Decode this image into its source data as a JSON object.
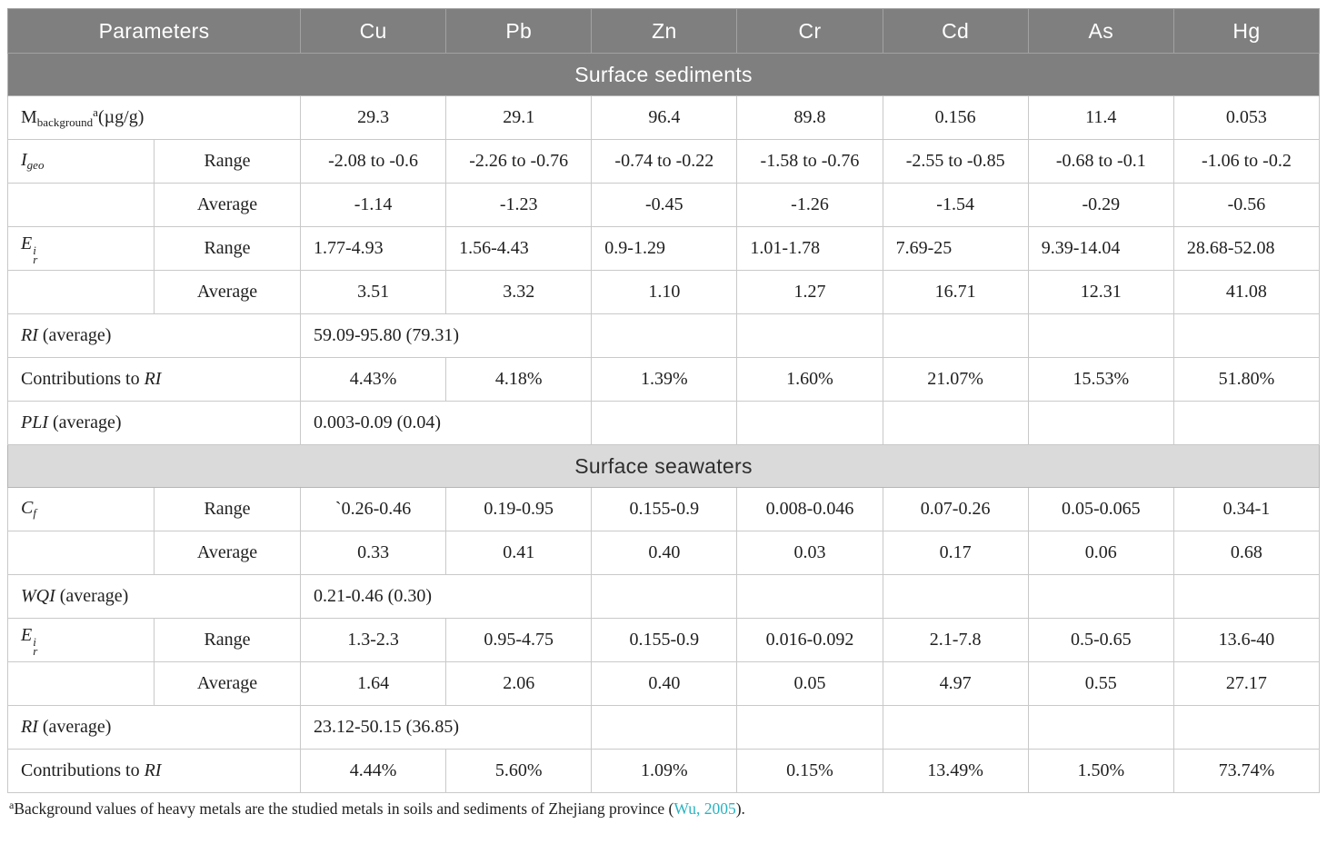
{
  "colors": {
    "header_bg": "#7f7f7f",
    "header_text": "#ffffff",
    "sediment_band_bg": "#7f7f7f",
    "sediment_band_text": "#ffffff",
    "seawater_band_bg": "#dadada",
    "seawater_band_text": "#2e2e2e",
    "border": "#c9c9c9",
    "link": "#29b3c2"
  },
  "header": {
    "parameters_label": "Parameters",
    "metals": [
      "Cu",
      "Pb",
      "Zn",
      "Cr",
      "Cd",
      "As",
      "Hg"
    ]
  },
  "sections": [
    {
      "title": "Surface sediments",
      "band_bg": "#7f7f7f",
      "band_text": "#ffffff",
      "rows": [
        {
          "label_parts": [
            {
              "t": "M"
            },
            {
              "sb": "background"
            },
            {
              "sp": "a"
            },
            {
              "t": "(µg/g)"
            }
          ],
          "label_colspan": 2,
          "values": [
            "29.3",
            "29.1",
            "96.4",
            "89.8",
            "0.156",
            "11.4",
            "0.053"
          ],
          "values_align": "center"
        },
        {
          "label_parts": [
            {
              "i": "I"
            },
            {
              "isb": "geo"
            }
          ],
          "label_colspan": 1,
          "sublabel": "Range",
          "values": [
            "-2.08 to -0.6",
            "-2.26 to -0.76",
            "-0.74 to -0.22",
            "-1.58 to -0.76",
            "-2.55 to -0.85",
            "-0.68 to -0.1",
            "-1.06 to -0.2"
          ],
          "values_align": "center"
        },
        {
          "label_parts": [],
          "label_colspan": 1,
          "sublabel": "Average",
          "values": [
            "-1.14",
            "-1.23",
            "-0.45",
            "-1.26",
            "-1.54",
            "-0.29",
            "-0.56"
          ],
          "values_align": "center"
        },
        {
          "label_parts": [
            {
              "i": "E"
            },
            {
              "ss": [
                "i",
                "r"
              ]
            }
          ],
          "label_colspan": 1,
          "sublabel": "Range",
          "values": [
            "1.77-4.93",
            "1.56-4.43",
            "0.9-1.29",
            "1.01-1.78",
            "7.69-25",
            "9.39-14.04",
            "28.68-52.08"
          ],
          "values_align": "left"
        },
        {
          "label_parts": [],
          "label_colspan": 1,
          "sublabel": "Average",
          "values": [
            "3.51",
            "3.32",
            "1.10",
            "1.27",
            "16.71",
            "12.31",
            "41.08"
          ],
          "values_align": "center"
        },
        {
          "label_parts": [
            {
              "i": "RI"
            },
            {
              "t": " (average)"
            }
          ],
          "label_colspan": 2,
          "value_span": "59.09-95.80 (79.31)"
        },
        {
          "label_parts": [
            {
              "t": "Contributions to "
            },
            {
              "i": "RI"
            }
          ],
          "label_colspan": 2,
          "values": [
            "4.43%",
            "4.18%",
            "1.39%",
            "1.60%",
            "21.07%",
            "15.53%",
            "51.80%"
          ],
          "values_align": "center"
        },
        {
          "label_parts": [
            {
              "i": "PLI"
            },
            {
              "t": " (average)"
            }
          ],
          "label_colspan": 2,
          "value_span": "0.003-0.09 (0.04)"
        }
      ]
    },
    {
      "title": "Surface seawaters",
      "band_bg": "#dadada",
      "band_text": "#2e2e2e",
      "rows": [
        {
          "label_parts": [
            {
              "i": "C"
            },
            {
              "isb": "f"
            }
          ],
          "label_colspan": 1,
          "sublabel": "Range",
          "values": [
            "`0.26-0.46",
            "0.19-0.95",
            "0.155-0.9",
            "0.008-0.046",
            "0.07-0.26",
            "0.05-0.065",
            "0.34-1"
          ],
          "values_align": "center"
        },
        {
          "label_parts": [],
          "label_colspan": 1,
          "sublabel": "Average",
          "values": [
            "0.33",
            "0.41",
            "0.40",
            "0.03",
            "0.17",
            "0.06",
            "0.68"
          ],
          "values_align": "center"
        },
        {
          "label_parts": [
            {
              "i": "WQI"
            },
            {
              "t": " (average)"
            }
          ],
          "label_colspan": 2,
          "value_span": "0.21-0.46 (0.30)"
        },
        {
          "label_parts": [
            {
              "i": "E"
            },
            {
              "ss": [
                "i",
                "r"
              ]
            }
          ],
          "label_colspan": 1,
          "sublabel": "Range",
          "values": [
            "1.3-2.3",
            "0.95-4.75",
            "0.155-0.9",
            "0.016-0.092",
            "2.1-7.8",
            "0.5-0.65",
            "13.6-40"
          ],
          "values_align": "center"
        },
        {
          "label_parts": [],
          "label_colspan": 1,
          "sublabel": "Average",
          "values": [
            "1.64",
            "2.06",
            "0.40",
            "0.05",
            "4.97",
            "0.55",
            "27.17"
          ],
          "values_align": "center"
        },
        {
          "label_parts": [
            {
              "i": "RI"
            },
            {
              "t": " (average)"
            }
          ],
          "label_colspan": 2,
          "value_span": "23.12-50.15 (36.85)"
        },
        {
          "label_parts": [
            {
              "t": "Contributions to "
            },
            {
              "i": "RI"
            }
          ],
          "label_colspan": 2,
          "values": [
            "4.44%",
            "5.60%",
            "1.09%",
            "0.15%",
            "13.49%",
            "1.50%",
            "73.74%"
          ],
          "values_align": "center"
        }
      ]
    }
  ],
  "footnote": {
    "parts": [
      {
        "sp": "a"
      },
      {
        "t": "Background values of heavy metals are the studied metals in soils and sediments of Zhejiang province ("
      },
      {
        "link": "Wu, 2005"
      },
      {
        "t": ")."
      }
    ]
  }
}
